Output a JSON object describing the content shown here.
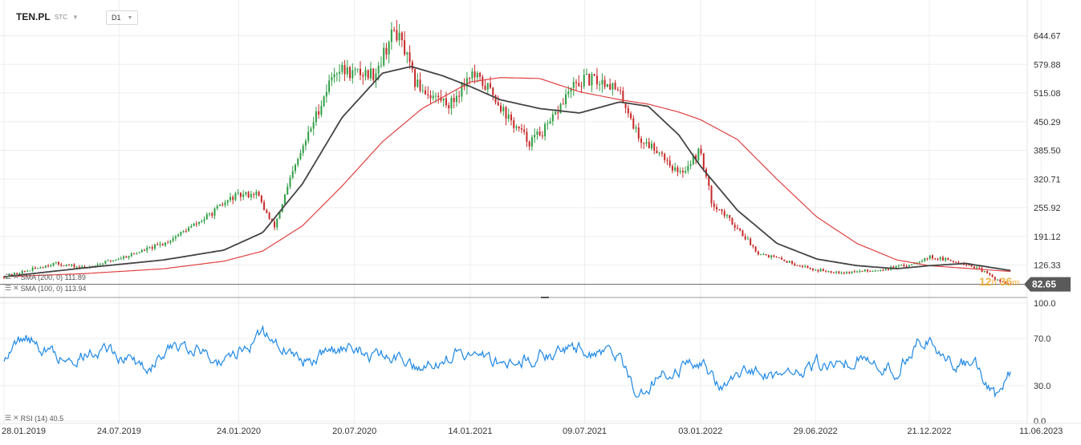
{
  "header": {
    "symbol": "TEN.PL",
    "market": "STC",
    "timeframe": "D1"
  },
  "indicators": {
    "sma200": "SMA (200, 0) 111.89",
    "sma100": "SMA (100, 0) 113.94",
    "rsi": "RSI (14) 40.5"
  },
  "countdown": {
    "hours": "12",
    "h": "h",
    "minutes": "36",
    "m": "m"
  },
  "colors": {
    "candle_up": "#2e9e44",
    "candle_down": "#c62828",
    "sma200": "#e04040",
    "sma100": "#444444",
    "rsi": "#1e88e5",
    "price_tag": "#5a5a5a"
  },
  "chart_data": [
    {
      "type": "candlestick",
      "title": "TEN.PL",
      "x_ticks": [
        "28.01.2019",
        "24.07.2019",
        "24.01.2020",
        "20.07.2020",
        "14.01.2021",
        "09.07.2021",
        "03.01.2022",
        "29.06.2022",
        "21.12.2022",
        "11.06.2023"
      ],
      "y_ticks": [
        644.67,
        579.88,
        515.08,
        450.29,
        385.5,
        320.71,
        255.92,
        191.12,
        126.33
      ],
      "ylim": [
        73,
        700
      ],
      "last_price": 82.65,
      "price_path": {
        "x": [
          "2019-01-28",
          "2019-04-15",
          "2019-06-01",
          "2019-08-01",
          "2019-10-01",
          "2019-12-01",
          "2020-01-15",
          "2020-02-20",
          "2020-03-18",
          "2020-04-15",
          "2020-05-15",
          "2020-06-20",
          "2020-07-20",
          "2020-08-20",
          "2020-09-20",
          "2020-10-05",
          "2020-10-20",
          "2020-11-15",
          "2020-12-15",
          "2021-01-14",
          "2021-02-15",
          "2021-03-15",
          "2021-04-15",
          "2021-05-15",
          "2021-06-15",
          "2021-07-09",
          "2021-08-15",
          "2021-09-01",
          "2021-09-10",
          "2021-10-01",
          "2021-11-01",
          "2021-12-01",
          "2022-01-03",
          "2022-01-20",
          "2022-03-01",
          "2022-04-01",
          "2022-05-15",
          "2022-06-29",
          "2022-08-15",
          "2022-10-01",
          "2022-11-15",
          "2022-12-21",
          "2023-02-15",
          "2023-03-10",
          "2023-04-10",
          "2023-04-25"
        ],
        "y": [
          100,
          130,
          120,
          145,
          175,
          230,
          280,
          290,
          210,
          330,
          440,
          570,
          560,
          560,
          660,
          610,
          540,
          510,
          490,
          560,
          520,
          455,
          405,
          440,
          520,
          545,
          540,
          510,
          490,
          410,
          385,
          330,
          385,
          270,
          210,
          155,
          135,
          115,
          110,
          115,
          125,
          145,
          130,
          115,
          88,
          82.65
        ]
      },
      "series": [
        {
          "name": "SMA (200, 0) 111.89",
          "x": [
            "2019-01-28",
            "2019-06-01",
            "2019-10-01",
            "2020-01-01",
            "2020-03-01",
            "2020-05-01",
            "2020-07-01",
            "2020-09-01",
            "2020-11-01",
            "2021-01-14",
            "2021-03-01",
            "2021-05-01",
            "2021-07-01",
            "2021-09-01",
            "2021-10-15",
            "2021-12-01",
            "2022-01-03",
            "2022-03-01",
            "2022-05-01",
            "2022-07-01",
            "2022-09-01",
            "2022-11-01",
            "2022-12-21",
            "2023-02-15",
            "2023-04-25"
          ],
          "y": [
            100,
            107,
            118,
            135,
            158,
            215,
            305,
            405,
            480,
            540,
            550,
            548,
            518,
            500,
            490,
            472,
            455,
            410,
            320,
            235,
            175,
            138,
            125,
            119,
            111.89
          ]
        },
        {
          "name": "SMA (100, 0) 113.94",
          "x": [
            "2019-01-28",
            "2019-06-01",
            "2019-10-01",
            "2020-01-01",
            "2020-03-01",
            "2020-05-01",
            "2020-07-01",
            "2020-09-01",
            "2020-10-15",
            "2020-12-01",
            "2021-01-14",
            "2021-03-01",
            "2021-05-01",
            "2021-07-01",
            "2021-09-01",
            "2021-10-15",
            "2021-12-01",
            "2022-01-03",
            "2022-03-01",
            "2022-05-01",
            "2022-07-01",
            "2022-09-01",
            "2022-11-01",
            "2022-12-21",
            "2023-02-15",
            "2023-04-25"
          ],
          "y": [
            100,
            120,
            138,
            160,
            200,
            310,
            460,
            560,
            575,
            555,
            530,
            500,
            480,
            470,
            495,
            485,
            420,
            350,
            250,
            175,
            140,
            125,
            118,
            125,
            130,
            113.94
          ]
        }
      ]
    },
    {
      "type": "line",
      "title": "RSI (14) 40.5",
      "y_ticks": [
        100.0,
        70.0,
        30.0,
        0.0
      ],
      "ylim": [
        0,
        100
      ],
      "series": [
        {
          "name": "RSI (14) 40.5",
          "x": [
            "2019-01-28",
            "2019-03-01",
            "2019-05-01",
            "2019-07-01",
            "2019-09-01",
            "2019-11-01",
            "2020-01-01",
            "2020-03-01",
            "2020-05-01",
            "2020-07-01",
            "2020-09-01",
            "2020-11-01",
            "2021-01-01",
            "2021-03-01",
            "2021-05-01",
            "2021-07-01",
            "2021-09-01",
            "2021-10-01",
            "2021-11-01",
            "2021-12-01",
            "2022-01-03",
            "2022-02-01",
            "2022-03-15",
            "2022-05-01",
            "2022-07-01",
            "2022-09-01",
            "2022-11-01",
            "2022-12-01",
            "2022-12-21",
            "2023-01-15",
            "2023-03-01",
            "2023-04-01",
            "2023-04-25"
          ],
          "y": [
            55,
            72,
            52,
            62,
            45,
            68,
            48,
            75,
            50,
            62,
            55,
            48,
            58,
            50,
            55,
            62,
            50,
            22,
            38,
            45,
            52,
            30,
            45,
            38,
            48,
            52,
            42,
            68,
            72,
            52,
            48,
            22,
            40.5
          ]
        }
      ]
    }
  ]
}
